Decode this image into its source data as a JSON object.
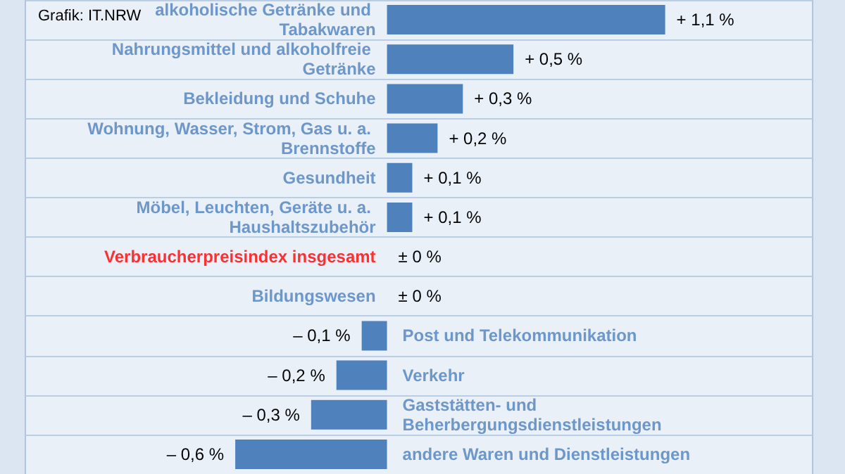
{
  "chart_data": {
    "type": "bar",
    "orientation": "horizontal",
    "grid": "y",
    "categories": [
      "alkoholische Getränke und Tabakwaren",
      "Nahrungsmittel und alkoholfreie Getränke",
      "Bekleidung und Schuhe",
      "Wohnung, Wasser, Strom, Gas u. a. Brennstoffe",
      "Gesundheit",
      "Möbel, Leuchten, Geräte u. a. Haushaltszubehör",
      "Verbraucherpreisindex insgesamt",
      "Bildungswesen",
      "Post und Telekommunikation",
      "Verkehr",
      "Gaststätten- und Beherbergungsdienstleistungen",
      "andere Waren und Dienstleistungen"
    ],
    "values": [
      1.1,
      0.5,
      0.3,
      0.2,
      0.1,
      0.1,
      0,
      0,
      -0.1,
      -0.2,
      -0.3,
      -0.6
    ],
    "colors": [
      "#4f81bd",
      "#4f81bd",
      "#4f81bd",
      "#4f81bd",
      "#4f81bd",
      "#4f81bd",
      "#ff0000",
      "#4f81bd",
      "#4f81bd",
      "#4f81bd",
      "#4f81bd",
      "#4f81bd"
    ],
    "value_labels": [
      "+ 1,1 %",
      "+ 0,5 %",
      "+ 0,3 %",
      "+ 0,2 %",
      "+ 0,1 %",
      "+ 0,1 %",
      "± 0 %",
      "± 0 %",
      "– 0,1 %",
      "– 0,2 %",
      "– 0,3 %",
      "– 0,6 %"
    ],
    "annotations": [
      "Grafik: IT.NRW"
    ]
  }
}
